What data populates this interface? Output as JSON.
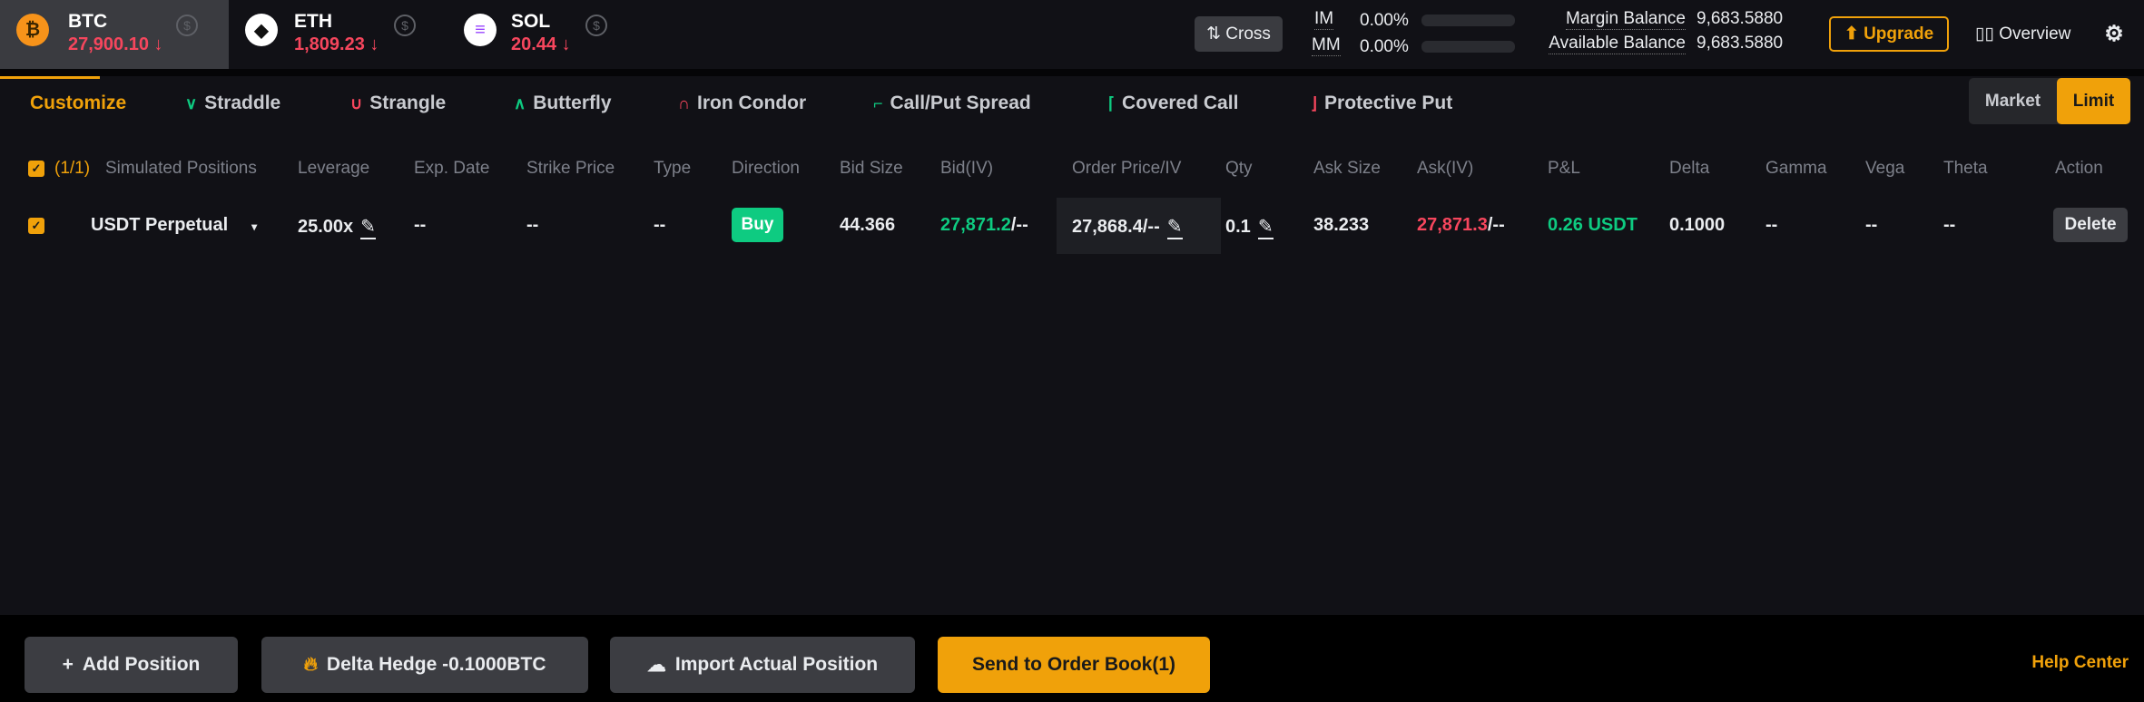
{
  "coins": [
    {
      "symbol": "BTC",
      "price": "27,900.10",
      "trend": "↓",
      "icon": "bitcoin-icon",
      "color": "#f7931a",
      "glyph": "₿"
    },
    {
      "symbol": "ETH",
      "price": "1,809.23",
      "trend": "↓",
      "icon": "ethereum-icon",
      "color": "#ffffff",
      "glyph": "◆"
    },
    {
      "symbol": "SOL",
      "price": "20.44",
      "trend": "↓",
      "icon": "solana-icon",
      "color": "#ffffff",
      "glyph": "≡"
    }
  ],
  "header": {
    "cross_label": "Cross",
    "im_label": "IM",
    "im_value": "0.00%",
    "mm_label": "MM",
    "mm_value": "0.00%",
    "im_fill": 0,
    "mm_fill": 0,
    "margin_balance_label": "Margin Balance",
    "margin_balance": "9,683.5880",
    "available_balance_label": "Available Balance",
    "available_balance": "9,683.5880",
    "upgrade_label": "Upgrade",
    "overview_label": "Overview"
  },
  "strategies": [
    "Customize",
    "Straddle",
    "Strangle",
    "Butterfly",
    "Iron Condor",
    "Call/Put Spread",
    "Covered Call",
    "Protective Put"
  ],
  "order_type": {
    "market": "Market",
    "limit": "Limit",
    "selected": "Limit"
  },
  "table": {
    "count": "(1/1)",
    "headers": [
      "Simulated Positions",
      "Leverage",
      "Exp. Date",
      "Strike Price",
      "Type",
      "Direction",
      "Bid Size",
      "Bid(IV)",
      "Order Price/IV",
      "Qty",
      "Ask Size",
      "Ask(IV)",
      "P&L",
      "Delta",
      "Gamma",
      "Vega",
      "Theta",
      "Action"
    ],
    "row": {
      "instrument": "USDT Perpetual",
      "leverage": "25.00x",
      "exp_date": "--",
      "strike": "--",
      "type": "--",
      "direction": "Buy",
      "bid_size": "44.366",
      "bid": "27,871.2",
      "bid_iv": "/--",
      "order_price": "27,868.4/--",
      "qty": "0.1",
      "ask_size": "38.233",
      "ask": "27,871.3",
      "ask_iv": "/--",
      "pnl": "0.26 USDT",
      "delta": "0.1000",
      "gamma": "--",
      "vega": "--",
      "theta": "--",
      "action": "Delete"
    }
  },
  "footer": {
    "add_position": "Add Position",
    "delta_hedge": "Delta Hedge -0.1000BTC",
    "import": "Import Actual Position",
    "send": "Send to Order Book(1)",
    "help": "Help Center"
  },
  "colors": {
    "accent": "#f0a10a",
    "up": "#0ecb81",
    "down": "#f6465d"
  }
}
